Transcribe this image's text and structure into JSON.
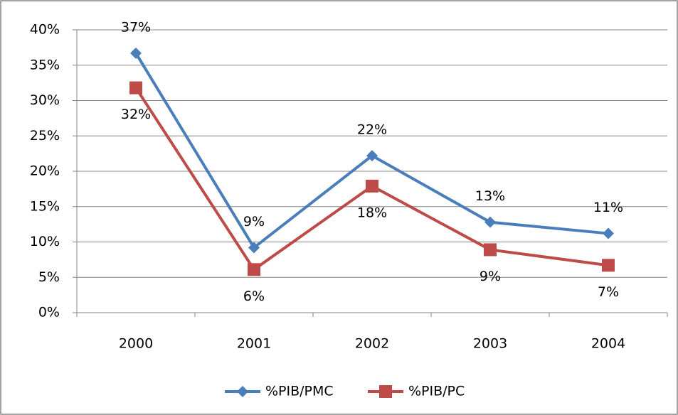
{
  "chart_data": {
    "type": "line",
    "categories": [
      "2000",
      "2001",
      "2002",
      "2003",
      "2004"
    ],
    "series": [
      {
        "name": "%PIB/PMC",
        "color": "#4a7ebb",
        "marker": "diamond",
        "values": [
          36.7,
          9.2,
          22.2,
          12.8,
          11.2
        ],
        "value_labels": [
          "37%",
          "9%",
          "22%",
          "13%",
          "11%"
        ]
      },
      {
        "name": "%PIB/PC",
        "color": "#be4b48",
        "marker": "square",
        "values": [
          31.8,
          6.1,
          17.9,
          8.9,
          6.7
        ],
        "value_labels": [
          "32%",
          "6%",
          "18%",
          "9%",
          "7%"
        ]
      }
    ],
    "ylim": [
      0,
      40
    ],
    "yticks": [
      {
        "value": 0,
        "label": "0%"
      },
      {
        "value": 5,
        "label": "5%"
      },
      {
        "value": 10,
        "label": "10%"
      },
      {
        "value": 15,
        "label": "15%"
      },
      {
        "value": 20,
        "label": "20%"
      },
      {
        "value": 25,
        "label": "25%"
      },
      {
        "value": 30,
        "label": "30%"
      },
      {
        "value": 35,
        "label": "35%"
      },
      {
        "value": 40,
        "label": "40%"
      }
    ],
    "grid": true,
    "legend": "bottom"
  }
}
